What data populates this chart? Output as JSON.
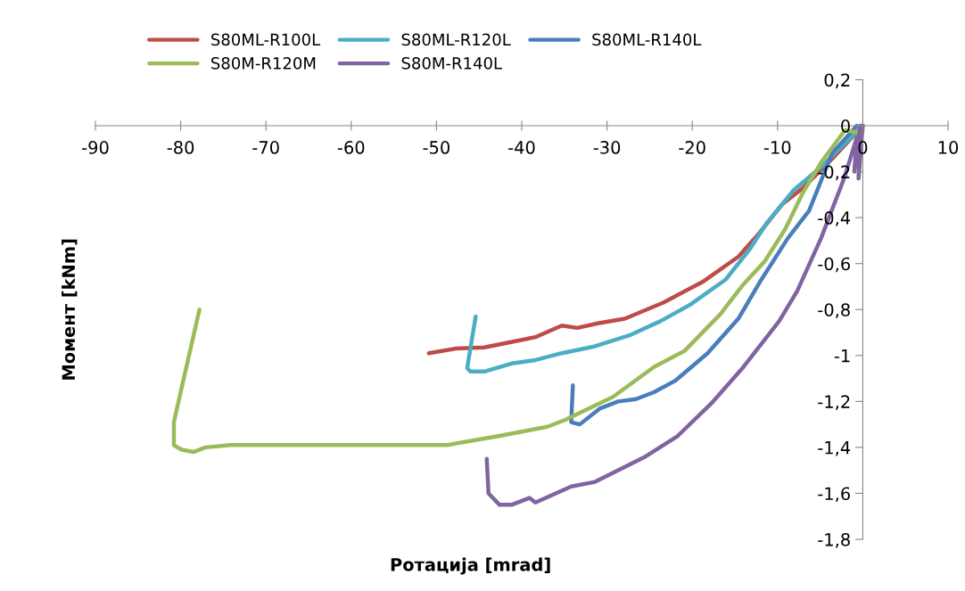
{
  "chart_data": {
    "type": "line",
    "xlabel": "Ротација [mrad]",
    "ylabel": "Момент [kNm]",
    "xlim": [
      -90,
      10
    ],
    "xticks": [
      -90,
      -80,
      -70,
      -60,
      -50,
      -40,
      -30,
      -20,
      -10,
      0,
      10
    ],
    "ylim": [
      -1.8,
      0.2
    ],
    "yticks": [
      {
        "value": -1.8,
        "label": "-1,8"
      },
      {
        "value": -1.6,
        "label": "-1,6"
      },
      {
        "value": -1.4,
        "label": "-1,4"
      },
      {
        "value": -1.2,
        "label": "-1,2"
      },
      {
        "value": -1,
        "label": "-1"
      },
      {
        "value": -0.8,
        "label": "-0,8"
      },
      {
        "value": -0.6,
        "label": "-0,6"
      },
      {
        "value": -0.4,
        "label": "-0,4"
      },
      {
        "value": -0.2,
        "label": "-0,2"
      },
      {
        "value": 0,
        "label": "0"
      },
      {
        "value": 0.2,
        "label": "0,2"
      }
    ],
    "grid": false,
    "legend": "top",
    "marker": "none",
    "line_style": "solid",
    "series": [
      {
        "name": "S80ML-R100L",
        "color": "#be4b48",
        "x": [
          0,
          -3.5,
          -7.0,
          -9.4,
          -12.2,
          -14.6,
          -18.8,
          -23.4,
          -27.9,
          -31.1,
          -33.5,
          -35.3,
          -38.4,
          -39.7,
          -44.4,
          -47.8,
          -50.9
        ],
        "values": [
          0,
          -0.14,
          -0.27,
          -0.34,
          -0.47,
          -0.57,
          -0.68,
          -0.77,
          -0.84,
          -0.86,
          -0.88,
          -0.87,
          -0.92,
          -0.93,
          -0.965,
          -0.97,
          -0.99
        ]
      },
      {
        "name": "S80ML-R120L",
        "color": "#4bacc6",
        "x": [
          0,
          -4.9,
          -8.1,
          -11.2,
          -13.3,
          -16.1,
          -20.3,
          -23.7,
          -27.2,
          -31.4,
          -35.3,
          -38.4,
          -41.2,
          -44.4,
          -46.0,
          -46.4,
          -45.4
        ],
        "values": [
          0,
          -0.18,
          -0.28,
          -0.42,
          -0.54,
          -0.67,
          -0.78,
          -0.85,
          -0.91,
          -0.96,
          -0.99,
          -1.02,
          -1.035,
          -1.07,
          -1.07,
          -1.055,
          -0.83
        ]
      },
      {
        "name": "S80ML-R140L",
        "color": "#4a7ebb",
        "x": [
          -0.7,
          -3.6,
          -6.3,
          -8.8,
          -11.9,
          -14.6,
          -18.2,
          -22.0,
          -24.5,
          -26.6,
          -28.7,
          -30.8,
          -33.2,
          -34.2,
          -34.0
        ],
        "values": [
          0.0,
          -0.12,
          -0.37,
          -0.49,
          -0.67,
          -0.84,
          -0.99,
          -1.11,
          -1.16,
          -1.19,
          -1.2,
          -1.23,
          -1.3,
          -1.29,
          -1.13
        ]
      },
      {
        "name": "S80M-R120M",
        "color": "#9bbb59",
        "x": [
          -0.5,
          -2.1,
          -4.9,
          -7.0,
          -9.1,
          -11.5,
          -14.0,
          -16.7,
          -20.9,
          -24.5,
          -29.3,
          -34.9,
          -37.0,
          -42.6,
          -48.8,
          -61.4,
          -74.3,
          -77.1,
          -78.5,
          -79.9,
          -80.8,
          -80.8,
          -77.8
        ],
        "values": [
          -0.03,
          -0.02,
          -0.16,
          -0.29,
          -0.45,
          -0.59,
          -0.69,
          -0.82,
          -0.98,
          -1.05,
          -1.18,
          -1.28,
          -1.31,
          -1.35,
          -1.39,
          -1.39,
          -1.39,
          -1.4,
          -1.42,
          -1.41,
          -1.39,
          -1.29,
          -0.8
        ]
      },
      {
        "name": "S80M-R140L",
        "color": "#8064a2",
        "x": [
          0,
          -0.5,
          -0.3,
          -1.0,
          -0.7,
          -2.1,
          -4.9,
          -7.7,
          -9.8,
          -14.0,
          -17.8,
          -21.7,
          -25.5,
          -31.4,
          -34.2,
          -38.4,
          -39.1,
          -41.2,
          -42.6,
          -43.9,
          -44.1
        ],
        "values": [
          0,
          -0.23,
          0,
          -0.2,
          -0.05,
          -0.22,
          -0.49,
          -0.72,
          -0.85,
          -1.05,
          -1.21,
          -1.35,
          -1.44,
          -1.55,
          -1.57,
          -1.64,
          -1.62,
          -1.65,
          -1.65,
          -1.6,
          -1.45
        ]
      }
    ]
  }
}
